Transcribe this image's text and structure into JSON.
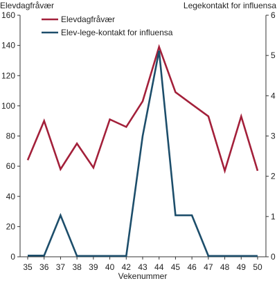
{
  "chart_data": {
    "type": "line",
    "title": "",
    "xlabel": "Vekenummer",
    "ylabel_left": "Elevdagfråvær",
    "ylabel_right": "Legekontakt for influensa",
    "categories": [
      "35",
      "36",
      "37",
      "38",
      "39",
      "40",
      "42",
      "43",
      "44",
      "45",
      "46",
      "47",
      "48",
      "49",
      "50"
    ],
    "ylim_left": [
      0,
      160
    ],
    "yticks_left": [
      0,
      20,
      40,
      60,
      80,
      100,
      120,
      140,
      160
    ],
    "ylim_right": [
      0,
      6
    ],
    "yticks_right": [
      0,
      1,
      2,
      3,
      4,
      5,
      6
    ],
    "grid": false,
    "legend_position": "top-left",
    "series": [
      {
        "name": "Elevdagfråvær",
        "axis": "left",
        "color": "#a3203a",
        "values": [
          64,
          90,
          58,
          75,
          59,
          91,
          86,
          103,
          139,
          109,
          101,
          93,
          57,
          93,
          57
        ]
      },
      {
        "name": "Elev-lege-kontakt for influensa",
        "axis": "right",
        "color": "#1d4e6b",
        "values": [
          0.03,
          0.03,
          1.03,
          0.02,
          0.02,
          0.02,
          0.02,
          3.0,
          5.12,
          1.03,
          1.03,
          0.02,
          0.02,
          0.02,
          0.02
        ]
      }
    ]
  }
}
